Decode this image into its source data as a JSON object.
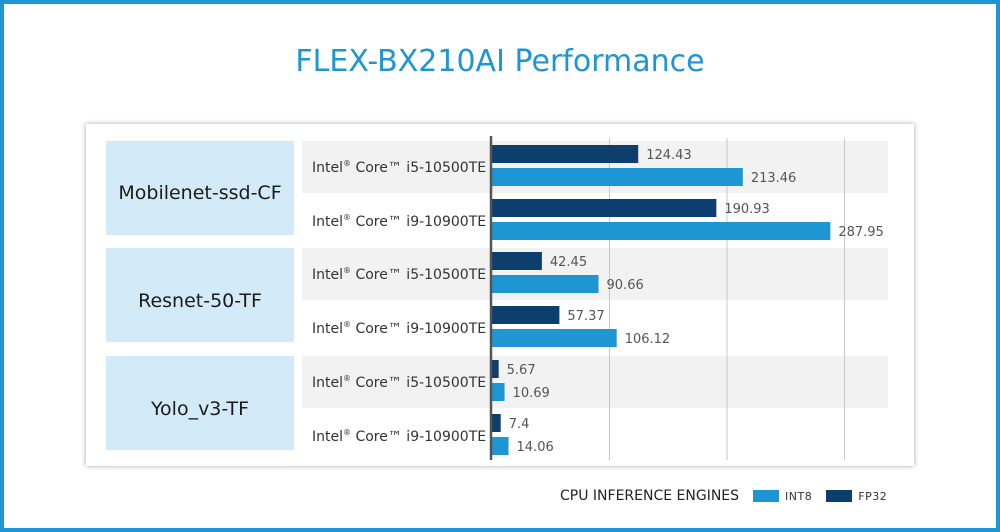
{
  "page": {
    "title": "FLEX-BX210AI Performance"
  },
  "chart_data": {
    "type": "bar",
    "orientation": "horizontal",
    "title": "FLEX-BX210AI Performance",
    "legend_title": "CPU INFERENCE ENGINES",
    "legend_position": "bottom-right",
    "xlim": [
      0,
      300
    ],
    "gridlines": [
      0,
      100,
      200,
      300
    ],
    "grid": true,
    "colors": {
      "INT8": "#1e96d4",
      "FP32": "#0d3f6e"
    },
    "groups": [
      {
        "model": "Mobilenet-ssd-CF",
        "rows": [
          {
            "cpu_prefix": "Intel",
            "cpu_reg": "®",
            "cpu_rest": " Core™ i5-10500TE",
            "FP32": 124.43,
            "INT8": 213.46
          },
          {
            "cpu_prefix": "Intel",
            "cpu_reg": "®",
            "cpu_rest": " Core™ i9-10900TE",
            "FP32": 190.93,
            "INT8": 287.95
          }
        ]
      },
      {
        "model": "Resnet-50-TF",
        "rows": [
          {
            "cpu_prefix": "Intel",
            "cpu_reg": "®",
            "cpu_rest": " Core™ i5-10500TE",
            "FP32": 42.45,
            "INT8": 90.66
          },
          {
            "cpu_prefix": "Intel",
            "cpu_reg": "®",
            "cpu_rest": " Core™ i9-10900TE",
            "FP32": 57.37,
            "INT8": 106.12
          }
        ]
      },
      {
        "model": "Yolo_v3-TF",
        "rows": [
          {
            "cpu_prefix": "Intel",
            "cpu_reg": "®",
            "cpu_rest": " Core™ i5-10500TE",
            "FP32": 5.67,
            "INT8": 10.69
          },
          {
            "cpu_prefix": "Intel",
            "cpu_reg": "®",
            "cpu_rest": " Core™ i9-10900TE",
            "FP32": 7.4,
            "INT8": 14.06
          }
        ]
      }
    ],
    "series": [
      {
        "name": "INT8"
      },
      {
        "name": "FP32"
      }
    ]
  }
}
